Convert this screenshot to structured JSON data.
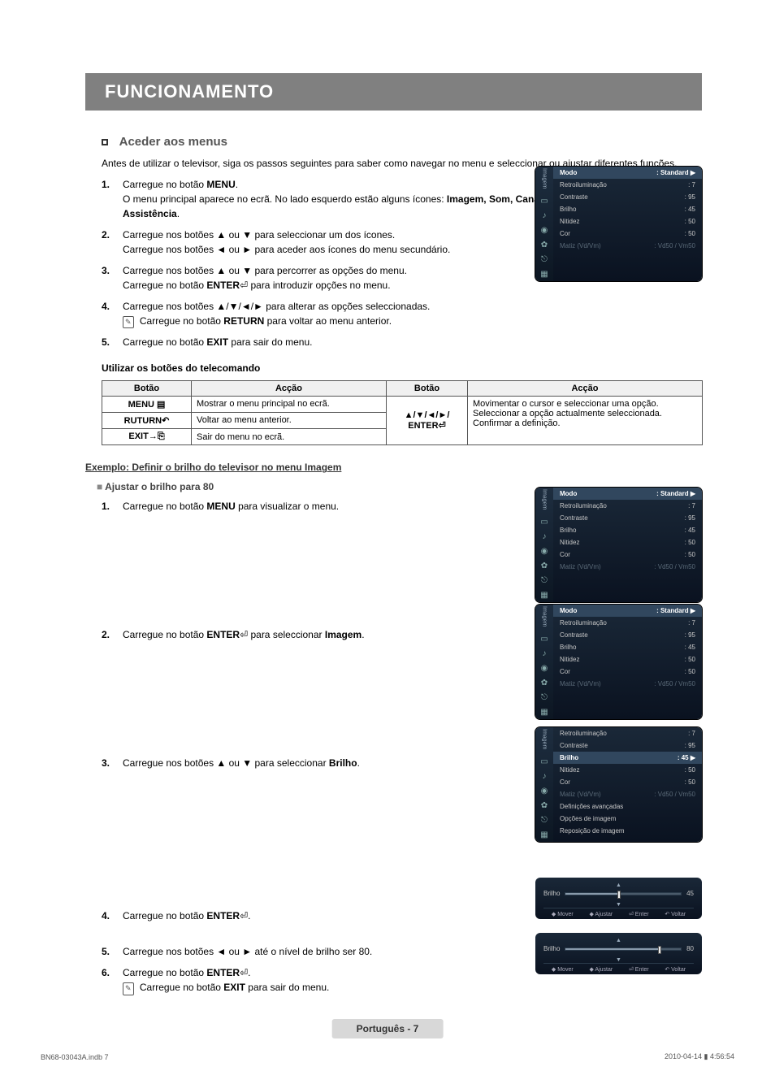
{
  "banner": "FUNCIONAMENTO",
  "section1_title": "Aceder aos menus",
  "intro": "Antes de utilizar o televisor, siga os passos seguintes para saber como navegar no menu e seleccionar ou ajustar diferentes funções.",
  "steps": [
    "Carregue no botão <b>MENU</b>.\nO menu principal aparece no ecrã. No lado esquerdo estão alguns ícones: <b>Imagem, Som, Canal, Configurar, Entrada., Aplicação, Assistência</b>.",
    "Carregue nos botões ▲ ou ▼ para seleccionar um dos ícones.\nCarregue nos botões ◄ ou ► para aceder aos ícones do menu secundário.",
    "Carregue nos botões ▲ ou ▼ para percorrer as opções do menu.\nCarregue no botão <b>ENTER</b>⏎ para introduzir opções no menu.",
    "Carregue nos botões ▲/▼/◄/► para alterar as opções seleccionadas.\n<span class='note-icon'>✎</span> Carregue no botão <b>RETURN</b> para voltar ao menu anterior.",
    "Carregue no botão <b>EXIT</b> para sair do menu."
  ],
  "remote_heading": "Utilizar os botões do telecomando",
  "table": {
    "headers": [
      "Botão",
      "Acção",
      "Botão",
      "Acção"
    ],
    "rows": [
      [
        "MENU ▤",
        "Mostrar o menu principal no ecrã.",
        "▲/▼/◄/►/\nENTER⏎",
        "Movimentar o cursor e seleccionar uma opção.\nSeleccionar a opção actualmente seleccionada.\nConfirmar a definição."
      ],
      [
        "RUTURN↶",
        "Voltar ao menu anterior."
      ],
      [
        "EXIT→⎘",
        "Sair do menu no ecrã."
      ]
    ]
  },
  "example_title": "Exemplo: Definir o brilho do televisor no menu Imagem",
  "adjust_heading": "Ajustar o brilho para 80",
  "example_steps": {
    "1": "Carregue no botão <b>MENU</b> para visualizar o menu.",
    "2": "Carregue no botão <b>ENTER</b>⏎ para seleccionar <b>Imagem</b>.",
    "3": "Carregue nos botões ▲ ou ▼ para seleccionar <b>Brilho</b>.",
    "4": "Carregue no botão <b>ENTER</b>⏎.",
    "5": "Carregue nos botões ◄ ou ► até o nível de brilho ser 80.",
    "6": "Carregue no botão <b>ENTER</b>⏎.\n<span class='note-icon'>✎</span> Carregue no botão <b>EXIT</b> para sair do menu."
  },
  "tv_menu_basic": {
    "highlight_label": "Modo",
    "highlight_value": ": Standard",
    "rows": [
      {
        "label": "Retroiluminação",
        "value": ": 7"
      },
      {
        "label": "Contraste",
        "value": ": 95"
      },
      {
        "label": "Brilho",
        "value": ": 45"
      },
      {
        "label": "Nitidez",
        "value": ": 50"
      },
      {
        "label": "Cor",
        "value": ": 50"
      },
      {
        "label": "Matiz (Vd/Vm)",
        "value": ": Vd50 / Vm50",
        "disabled": true
      }
    ],
    "side_label": "Imagem"
  },
  "tv_menu_brilho": {
    "top_rows": [
      {
        "label": "Retroiluminação",
        "value": ": 7"
      },
      {
        "label": "Contraste",
        "value": ": 95"
      }
    ],
    "highlight_label": "Brilho",
    "highlight_value": ": 45",
    "bottom_rows": [
      {
        "label": "Nitidez",
        "value": ": 50"
      },
      {
        "label": "Cor",
        "value": ": 50"
      },
      {
        "label": "Matiz (Vd/Vm)",
        "value": ": Vd50 / Vm50",
        "disabled": true
      },
      {
        "label": "Definições avançadas",
        "value": ""
      },
      {
        "label": "Opções de imagem",
        "value": ""
      },
      {
        "label": "Reposição de imagem",
        "value": ""
      }
    ],
    "side_label": "Imagem"
  },
  "slider1": {
    "label": "Brilho",
    "value": 45,
    "max": 100
  },
  "slider2": {
    "label": "Brilho",
    "value": 80,
    "max": 100
  },
  "slider_controls": [
    "◆ Mover",
    "◆ Ajustar",
    "⏎ Enter",
    "↶ Voltar"
  ],
  "footer": "Português - 7",
  "footline_left": "BN68-03043A.indb   7",
  "footline_right": "2010-04-14   ▮ 4:56:54",
  "colors": {
    "banner_bg": "#808080",
    "menu_bg_top": "#1a2838",
    "menu_bg_bot": "#0a1220",
    "hl": "#31475e",
    "text_main": "#000"
  }
}
